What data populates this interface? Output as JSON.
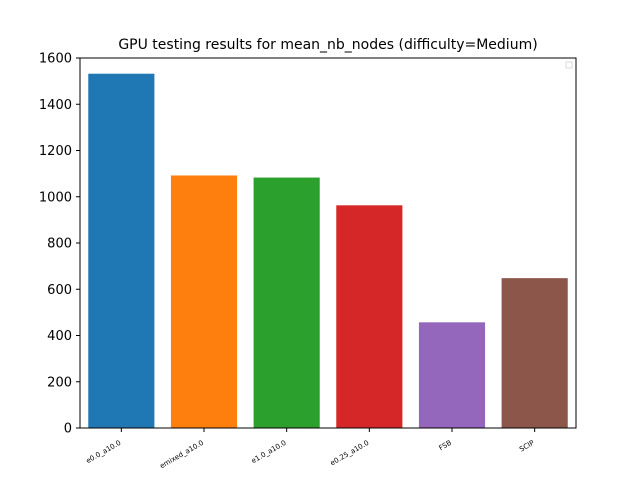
{
  "chart_data": {
    "type": "bar",
    "title": "GPU testing results for mean_nb_nodes (difficulty=Medium)",
    "xlabel": "",
    "ylabel": "",
    "categories": [
      "e0.0_a10.0",
      "emixed_a10.0",
      "e1.0_a10.0",
      "e0.25_a10.0",
      "FSB",
      "SCIP"
    ],
    "values": [
      1532,
      1092,
      1083,
      963,
      457,
      648
    ],
    "colors": [
      "#1f77b4",
      "#ff7f0e",
      "#2ca02c",
      "#d62728",
      "#9467bd",
      "#8c564b"
    ],
    "ylim": [
      0,
      1600
    ],
    "yticks": [
      0,
      200,
      400,
      600,
      800,
      1000,
      1200,
      1400,
      1600
    ],
    "grid": false,
    "legend": "top-right"
  }
}
